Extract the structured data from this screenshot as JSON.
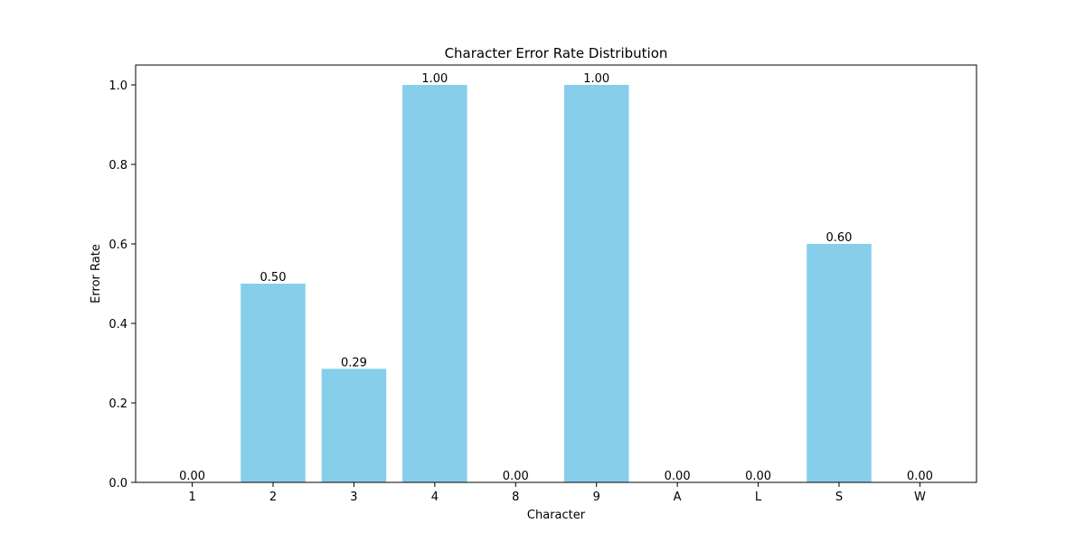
{
  "chart_data": {
    "type": "bar",
    "title": "Character Error Rate Distribution",
    "xlabel": "Character",
    "ylabel": "Error Rate",
    "categories": [
      "1",
      "2",
      "3",
      "4",
      "8",
      "9",
      "A",
      "L",
      "S",
      "W"
    ],
    "values": [
      0.0,
      0.5,
      0.2857,
      1.0,
      0.0,
      1.0,
      0.0,
      0.0,
      0.6,
      0.0
    ],
    "data_labels": [
      "0.00",
      "0.50",
      "0.29",
      "1.00",
      "0.00",
      "1.00",
      "0.00",
      "0.00",
      "0.60",
      "0.00"
    ],
    "ylim": [
      0,
      1.05
    ],
    "yticks": [
      0.0,
      0.2,
      0.4,
      0.6,
      0.8,
      1.0
    ],
    "ytick_labels": [
      "0.0",
      "0.2",
      "0.4",
      "0.6",
      "0.8",
      "1.0"
    ],
    "grid": false,
    "legend": "none",
    "bar_color": "#87ceeb"
  }
}
